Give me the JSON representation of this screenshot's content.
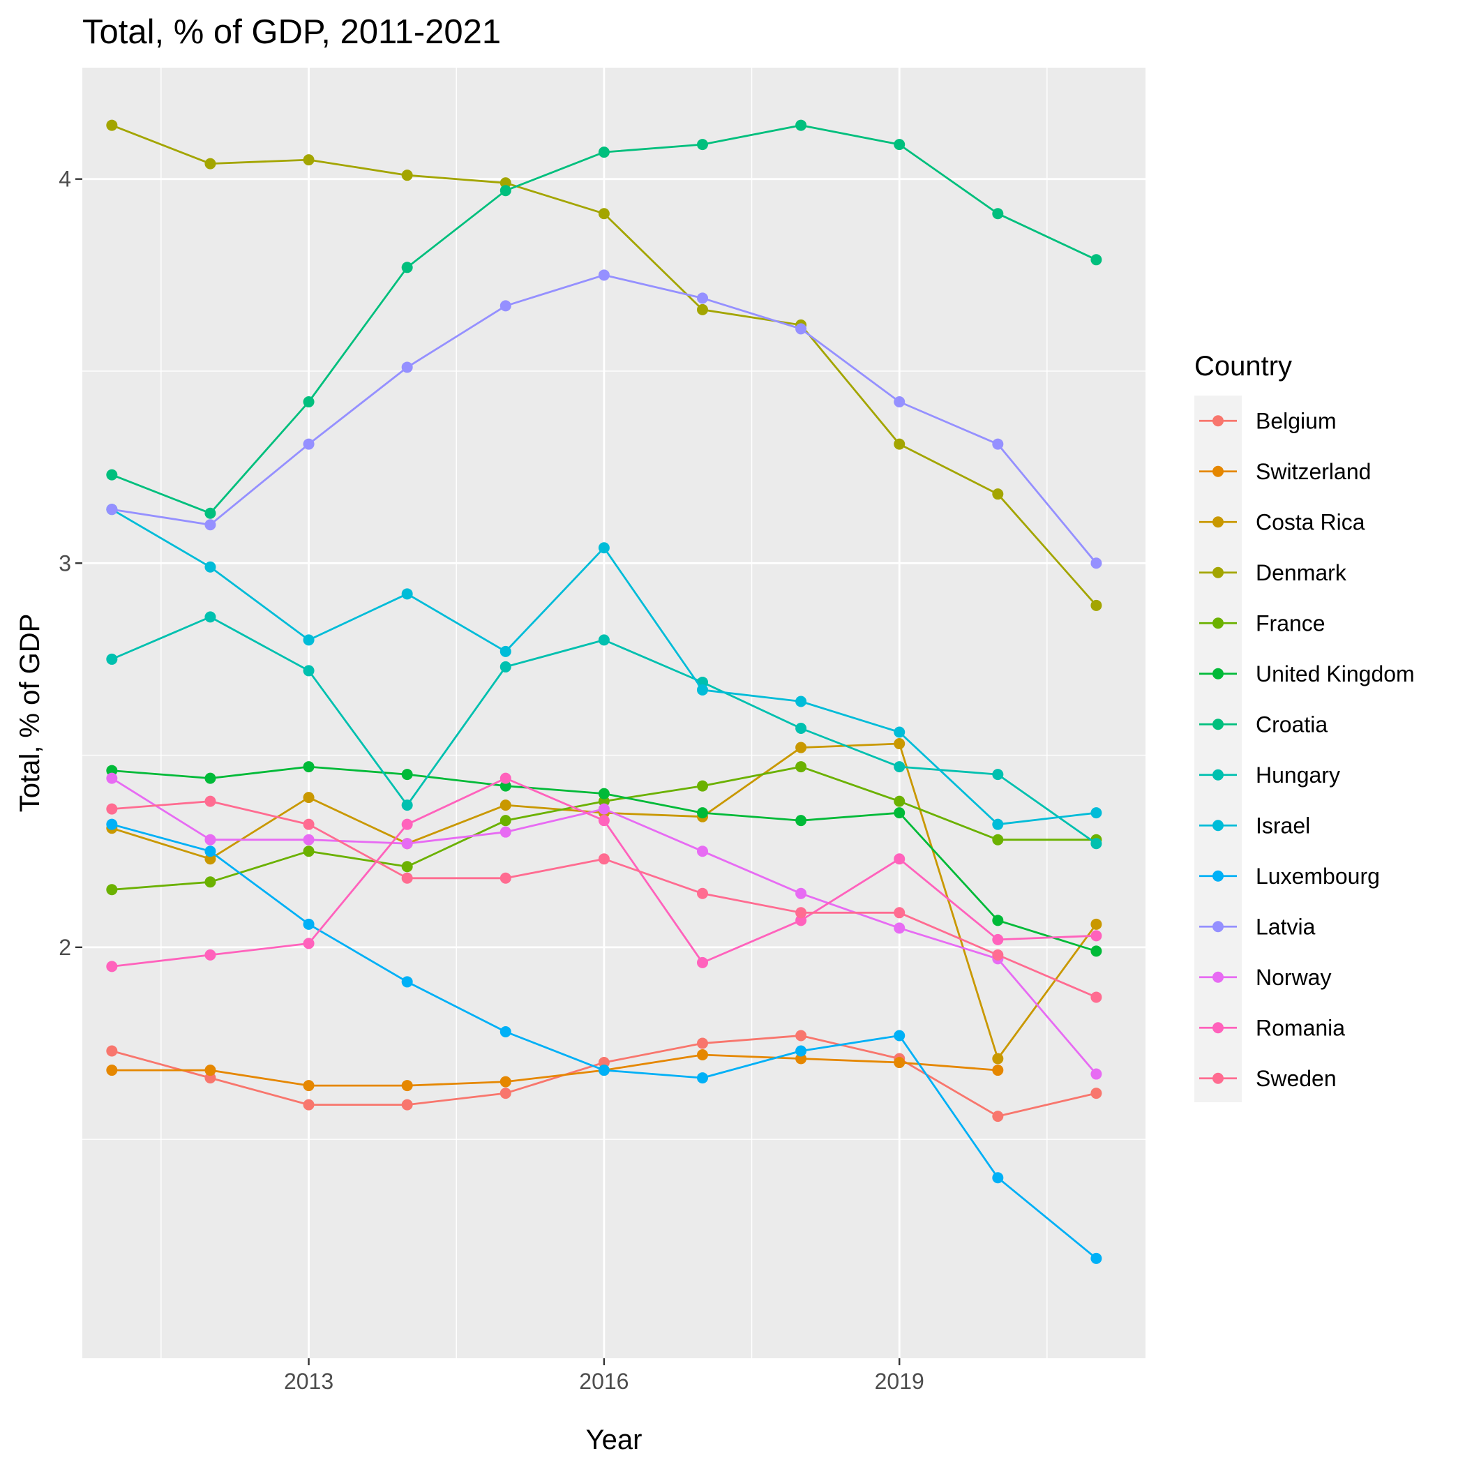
{
  "chart_data": {
    "type": "line",
    "title": "Total, % of GDP, 2011-2021",
    "xlabel": "Year",
    "ylabel": "Total, % of GDP",
    "x": [
      2011,
      2012,
      2013,
      2014,
      2015,
      2016,
      2017,
      2018,
      2019,
      2020,
      2021
    ],
    "xlim": [
      2010.7,
      2021.5
    ],
    "ylim": [
      0.93,
      4.29
    ],
    "x_ticks": [
      2013,
      2016,
      2019
    ],
    "x_tick_labels": [
      "2013",
      "2016",
      "2019"
    ],
    "x_minor_ticks": [
      2011.5,
      2014.5,
      2017.5,
      2020.5
    ],
    "y_ticks": [
      2,
      3,
      4
    ],
    "y_tick_labels": [
      "2",
      "3",
      "4"
    ],
    "y_minor_ticks": [
      1.5,
      2.5,
      3.5
    ],
    "grid": true,
    "legend": {
      "title": "Country",
      "position": "right"
    },
    "series": [
      {
        "name": "Belgium",
        "color": "#F8766D",
        "values": [
          1.73,
          1.66,
          1.59,
          1.59,
          1.62,
          1.7,
          1.75,
          1.77,
          1.71,
          1.56,
          1.62
        ]
      },
      {
        "name": "Switzerland",
        "color": "#E58700",
        "values": [
          1.68,
          1.68,
          1.64,
          1.64,
          1.65,
          1.68,
          1.72,
          1.71,
          1.7,
          1.68,
          null
        ]
      },
      {
        "name": "Costa Rica",
        "color": "#C99800",
        "values": [
          2.31,
          2.23,
          2.39,
          2.27,
          2.37,
          2.35,
          2.34,
          2.52,
          2.53,
          1.71,
          2.06
        ]
      },
      {
        "name": "Denmark",
        "color": "#A3A500",
        "values": [
          4.14,
          4.04,
          4.05,
          4.01,
          3.99,
          3.91,
          3.66,
          3.62,
          3.31,
          3.18,
          2.89
        ]
      },
      {
        "name": "France",
        "color": "#6BB100",
        "values": [
          2.15,
          2.17,
          2.25,
          2.21,
          2.33,
          2.38,
          2.42,
          2.47,
          2.38,
          2.28,
          2.28
        ]
      },
      {
        "name": "United Kingdom",
        "color": "#00BA38",
        "values": [
          2.46,
          2.44,
          2.47,
          2.45,
          2.42,
          2.4,
          2.35,
          2.33,
          2.35,
          2.07,
          1.99
        ]
      },
      {
        "name": "Croatia",
        "color": "#00BF7D",
        "values": [
          3.23,
          3.13,
          3.42,
          3.77,
          3.97,
          4.07,
          4.09,
          4.14,
          4.09,
          3.91,
          3.79
        ]
      },
      {
        "name": "Hungary",
        "color": "#00C0AF",
        "values": [
          2.75,
          2.86,
          2.72,
          2.37,
          2.73,
          2.8,
          2.69,
          2.57,
          2.47,
          2.45,
          2.27
        ]
      },
      {
        "name": "Israel",
        "color": "#00BCD8",
        "values": [
          3.14,
          2.99,
          2.8,
          2.92,
          2.77,
          3.04,
          2.67,
          2.64,
          2.56,
          2.32,
          2.35
        ]
      },
      {
        "name": "Luxembourg",
        "color": "#00B0F6",
        "values": [
          2.32,
          2.25,
          2.06,
          1.91,
          1.78,
          1.68,
          1.66,
          1.73,
          1.77,
          1.4,
          1.19
        ]
      },
      {
        "name": "Latvia",
        "color": "#9590FF",
        "values": [
          3.14,
          3.1,
          3.31,
          3.51,
          3.67,
          3.75,
          3.69,
          3.61,
          3.42,
          3.31,
          3.0
        ]
      },
      {
        "name": "Norway",
        "color": "#E76BF3",
        "values": [
          2.44,
          2.28,
          2.28,
          2.27,
          2.3,
          2.36,
          2.25,
          2.14,
          2.05,
          1.97,
          1.67
        ]
      },
      {
        "name": "Romania",
        "color": "#FF62BC",
        "values": [
          1.95,
          1.98,
          2.01,
          2.32,
          2.44,
          2.33,
          1.96,
          2.07,
          2.23,
          2.02,
          2.03
        ]
      },
      {
        "name": "Sweden",
        "color": "#FF6C91",
        "values": [
          2.36,
          2.38,
          2.32,
          2.18,
          2.18,
          2.23,
          2.14,
          2.09,
          2.09,
          1.98,
          1.87
        ]
      }
    ]
  }
}
